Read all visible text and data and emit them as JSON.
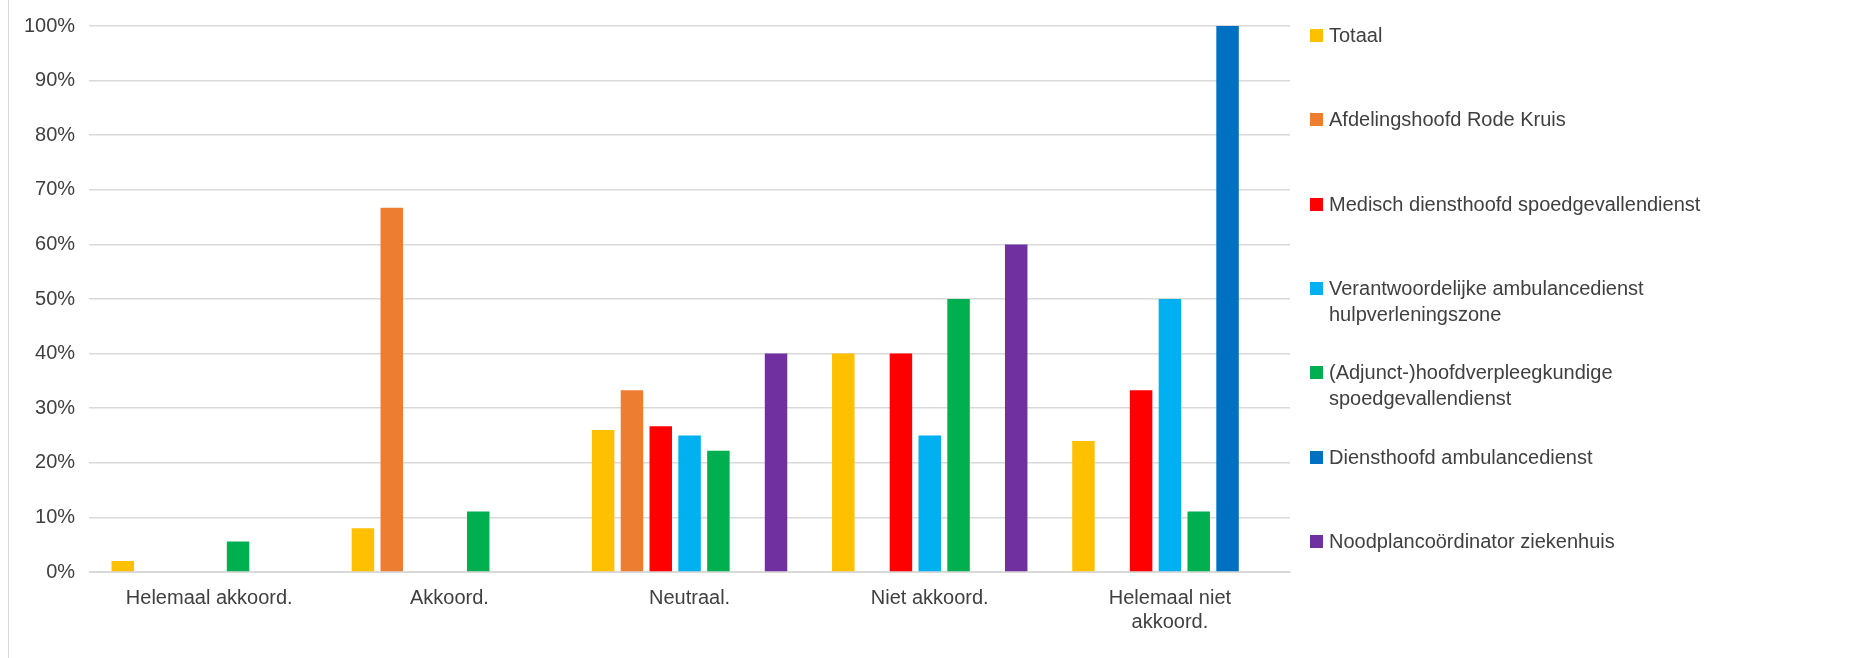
{
  "chart_data": {
    "type": "bar",
    "categories": [
      "Helemaal akkoord.",
      "Akkoord.",
      "Neutraal.",
      "Niet akkoord.",
      "Helemaal niet akkoord."
    ],
    "series": [
      {
        "name": "Totaal",
        "color": "#ffc000",
        "values": [
          2,
          8,
          26,
          40,
          24
        ]
      },
      {
        "name": "Afdelingshoofd Rode Kruis",
        "color": "#ed7d31",
        "values": [
          0,
          66.7,
          33.3,
          0,
          0
        ]
      },
      {
        "name": "Medisch diensthoofd spoedgevallendienst",
        "color": "#ff0000",
        "values": [
          0,
          0,
          26.7,
          40,
          33.3
        ]
      },
      {
        "name": "Verantwoordelijke ambulancedienst hulpverleningszone",
        "color": "#00b0f0",
        "values": [
          0,
          0,
          25,
          25,
          50
        ]
      },
      {
        "name": "(Adjunct-)hoofdverpleegkundige spoedgevallendienst",
        "color": "#00b050",
        "values": [
          5.6,
          11.1,
          22.2,
          50,
          11.1
        ]
      },
      {
        "name": "Diensthoofd ambulancedienst",
        "color": "#0070c0",
        "values": [
          0,
          0,
          0,
          0,
          100
        ]
      },
      {
        "name": "Noodplancoördinator ziekenhuis",
        "color": "#7030a0",
        "values": [
          0,
          0,
          40,
          60,
          0
        ]
      }
    ],
    "ylim": [
      0,
      100
    ],
    "yticks": [
      {
        "value": 0,
        "label": "0%"
      },
      {
        "value": 10,
        "label": "10%"
      },
      {
        "value": 20,
        "label": "20%"
      },
      {
        "value": 30,
        "label": "30%"
      },
      {
        "value": 40,
        "label": "40%"
      },
      {
        "value": 50,
        "label": "50%"
      },
      {
        "value": 60,
        "label": "60%"
      },
      {
        "value": 70,
        "label": "70%"
      },
      {
        "value": 80,
        "label": "80%"
      },
      {
        "value": 90,
        "label": "90%"
      },
      {
        "value": 100,
        "label": "100%"
      }
    ],
    "grid": "y",
    "legend": "right"
  }
}
